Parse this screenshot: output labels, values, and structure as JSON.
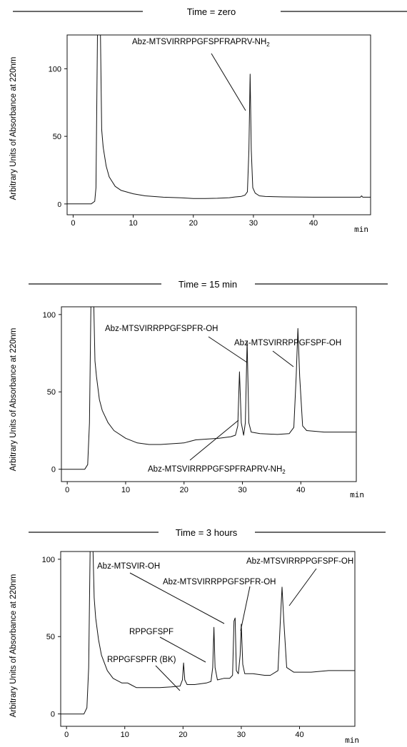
{
  "chart_data": [
    {
      "type": "line",
      "title": "Time = zero",
      "ylabel": "Arbitrary Units of Absorbance at  220nm",
      "xlabel": "min",
      "xlim": [
        -1,
        49.5
      ],
      "ylim": [
        -8,
        125
      ],
      "xticks": [
        0,
        10,
        20,
        30,
        40
      ],
      "yticks": [
        0,
        50,
        100
      ],
      "grid": false,
      "baseline": [
        [
          -1,
          0
        ],
        [
          3,
          0
        ],
        [
          3.6,
          2
        ],
        [
          3.8,
          12
        ],
        [
          4.05,
          128
        ],
        [
          4.55,
          128
        ],
        [
          4.75,
          55
        ],
        [
          5,
          42
        ],
        [
          5.5,
          28
        ],
        [
          6,
          20
        ],
        [
          7,
          13
        ],
        [
          8,
          10
        ],
        [
          10,
          7.5
        ],
        [
          12,
          6
        ],
        [
          15,
          5
        ],
        [
          18,
          4.5
        ],
        [
          20,
          4
        ],
        [
          22,
          4
        ],
        [
          24,
          4.2
        ],
        [
          26,
          4.6
        ],
        [
          27,
          5.2
        ],
        [
          28,
          5.6
        ],
        [
          28.6,
          6.5
        ],
        [
          29,
          9
        ],
        [
          29.25,
          40
        ],
        [
          29.45,
          96
        ],
        [
          29.65,
          40
        ],
        [
          29.9,
          12
        ],
        [
          30.3,
          8
        ],
        [
          31,
          6
        ],
        [
          32,
          5.5
        ],
        [
          35,
          5.2
        ],
        [
          40,
          5
        ],
        [
          45,
          5
        ],
        [
          47.8,
          5
        ],
        [
          48,
          6
        ],
        [
          48.2,
          5
        ],
        [
          49.5,
          5
        ]
      ],
      "annotations": [
        {
          "text": "Abz-MTSVIRRPPGFSPFRAPRV-NH2",
          "x": 29.45,
          "y": 96
        }
      ]
    },
    {
      "type": "line",
      "title": "Time = 15 min",
      "ylabel": "Arbitrary Units of Absorbance at  220nm",
      "xlabel": "min",
      "xlim": [
        -1,
        49.5
      ],
      "ylim": [
        -8,
        105
      ],
      "xticks": [
        0,
        10,
        20,
        30,
        40
      ],
      "yticks": [
        0,
        50,
        100
      ],
      "grid": false,
      "baseline": [
        [
          -1,
          0
        ],
        [
          3,
          0
        ],
        [
          3.5,
          3
        ],
        [
          3.8,
          30
        ],
        [
          4.05,
          110
        ],
        [
          4.55,
          110
        ],
        [
          4.75,
          70
        ],
        [
          5,
          60
        ],
        [
          5.5,
          45
        ],
        [
          6,
          38
        ],
        [
          7,
          30
        ],
        [
          8,
          25
        ],
        [
          10,
          20
        ],
        [
          12,
          17
        ],
        [
          14,
          16
        ],
        [
          16,
          16
        ],
        [
          18,
          16.5
        ],
        [
          20,
          17
        ],
        [
          21,
          18
        ],
        [
          22,
          19
        ],
        [
          24,
          19.5
        ],
        [
          26,
          20
        ],
        [
          28,
          21
        ],
        [
          28.8,
          22
        ],
        [
          29.2,
          28
        ],
        [
          29.5,
          63
        ],
        [
          29.8,
          30
        ],
        [
          30.2,
          22
        ],
        [
          30.5,
          30
        ],
        [
          30.8,
          83
        ],
        [
          31.1,
          30
        ],
        [
          31.5,
          24
        ],
        [
          33,
          23
        ],
        [
          36,
          22.5
        ],
        [
          38,
          23
        ],
        [
          38.8,
          27
        ],
        [
          39.2,
          60
        ],
        [
          39.5,
          91
        ],
        [
          39.8,
          60
        ],
        [
          40.3,
          28
        ],
        [
          41,
          25
        ],
        [
          44,
          24
        ],
        [
          47,
          24
        ],
        [
          49.5,
          24
        ]
      ],
      "annotations": [
        {
          "text": "Abz-MTSVIRRPPGFSPFR-OH",
          "x": 30.8,
          "y": 83
        },
        {
          "text": "Abz-MTSVIRRPPGFSPF-OH",
          "x": 39.5,
          "y": 91
        },
        {
          "text": "Abz-MTSVIRRPPGFSPFRAPRV-NH2",
          "x": 29.5,
          "y": 50
        }
      ]
    },
    {
      "type": "line",
      "title": "Time = 3 hours",
      "ylabel": "Arbitrary Units of Absorbance at  220nm",
      "xlabel": "min",
      "xlim": [
        -1,
        49.5
      ],
      "ylim": [
        -8,
        105
      ],
      "xticks": [
        0,
        10,
        20,
        30,
        40
      ],
      "yticks": [
        0,
        50,
        100
      ],
      "grid": false,
      "baseline": [
        [
          -1,
          0
        ],
        [
          3,
          0
        ],
        [
          3.5,
          4
        ],
        [
          3.8,
          30
        ],
        [
          4.05,
          110
        ],
        [
          4.55,
          110
        ],
        [
          4.75,
          75
        ],
        [
          5,
          62
        ],
        [
          5.5,
          48
        ],
        [
          6,
          38
        ],
        [
          7,
          28
        ],
        [
          8,
          23
        ],
        [
          9.5,
          20
        ],
        [
          10.5,
          20
        ],
        [
          11,
          19
        ],
        [
          12,
          17
        ],
        [
          14,
          17
        ],
        [
          16,
          17
        ],
        [
          18,
          17.5
        ],
        [
          19.5,
          18
        ],
        [
          19.9,
          22
        ],
        [
          20.1,
          33
        ],
        [
          20.3,
          22
        ],
        [
          20.7,
          19
        ],
        [
          22,
          19
        ],
        [
          24,
          20
        ],
        [
          24.8,
          21
        ],
        [
          25.1,
          30
        ],
        [
          25.3,
          56
        ],
        [
          25.5,
          30
        ],
        [
          25.9,
          22
        ],
        [
          27,
          23
        ],
        [
          28,
          23
        ],
        [
          28.5,
          25
        ],
        [
          28.75,
          60
        ],
        [
          28.95,
          62
        ],
        [
          29.15,
          28
        ],
        [
          29.5,
          26
        ],
        [
          29.8,
          38
        ],
        [
          30,
          58
        ],
        [
          30.25,
          32
        ],
        [
          30.6,
          26
        ],
        [
          32,
          26
        ],
        [
          34,
          25
        ],
        [
          35,
          25
        ],
        [
          36.3,
          28
        ],
        [
          36.7,
          60
        ],
        [
          37,
          82
        ],
        [
          37.3,
          60
        ],
        [
          37.8,
          30
        ],
        [
          39,
          27
        ],
        [
          42,
          27
        ],
        [
          45,
          28
        ],
        [
          49.5,
          28
        ]
      ],
      "annotations": [
        {
          "text": "Abz-MTSVIR-OH",
          "x": 28.85,
          "y": 62
        },
        {
          "text": "Abz-MTSVIRRPPGFSPF-OH",
          "x": 37,
          "y": 82
        },
        {
          "text": "Abz-MTSVIRRPPGFSPFR-OH",
          "x": 30,
          "y": 58
        },
        {
          "text": "RPPGFSPF",
          "x": 25.3,
          "y": 56
        },
        {
          "text": "RPPGFSPFR (BK)",
          "x": 20.1,
          "y": 33
        }
      ]
    }
  ]
}
